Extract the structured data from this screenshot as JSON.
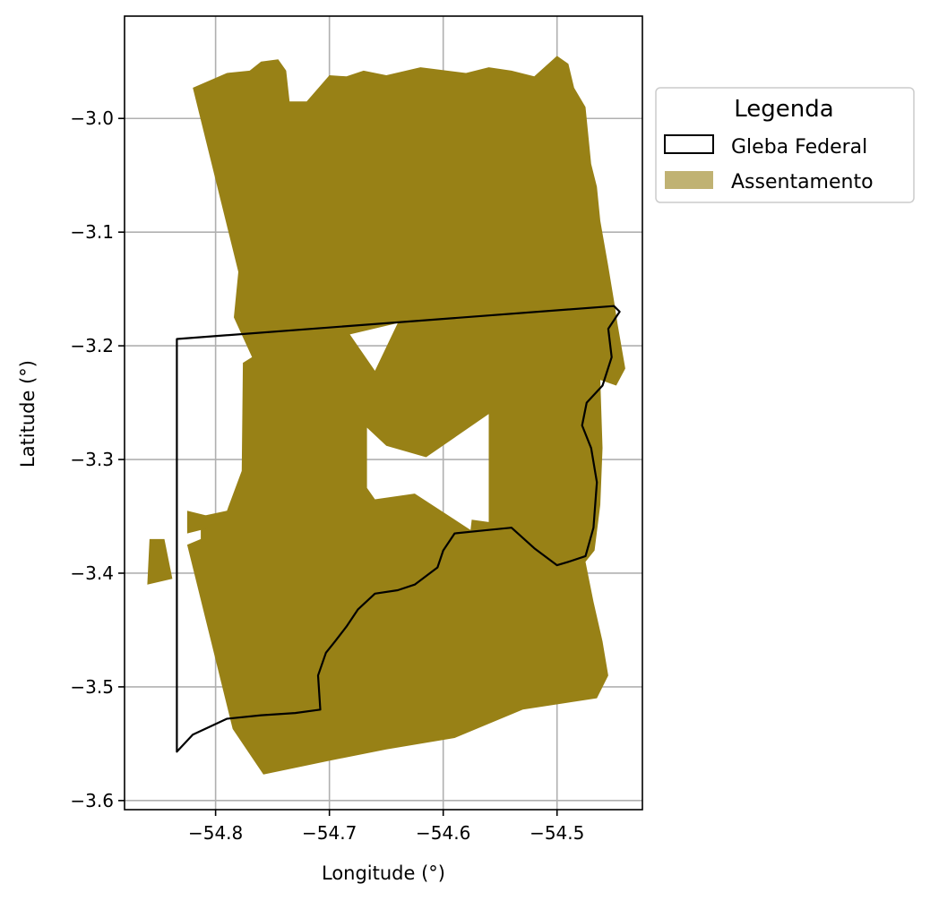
{
  "chart_data": {
    "type": "map",
    "xlabel": "Longitude (°)",
    "ylabel": "Latitude (°)",
    "xlim": [
      -54.88,
      -54.425
    ],
    "ylim": [
      -3.608,
      -2.91
    ],
    "grid": true,
    "x_ticks": [
      -54.8,
      -54.7,
      -54.6,
      -54.5
    ],
    "y_ticks": [
      -3.0,
      -3.1,
      -3.2,
      -3.3,
      -3.4,
      -3.5,
      -3.6
    ],
    "x_tick_labels": [
      "−54.8",
      "−54.7",
      "−54.6",
      "−54.5"
    ],
    "y_tick_labels": [
      "−3.0",
      "−3.1",
      "−3.2",
      "−3.3",
      "−3.4",
      "−3.5",
      "−3.6"
    ],
    "legend": {
      "title": "Legenda",
      "placement": "outside-upper-right",
      "entries": [
        {
          "label": "Gleba Federal",
          "style": "outline",
          "color": "#000000"
        },
        {
          "label": "Assentamento",
          "style": "fill",
          "color": "#c0b273"
        }
      ]
    },
    "layers": {
      "assentamento": {
        "color": "#988116",
        "outer": [
          [
            -54.82,
            -2.973
          ],
          [
            -54.79,
            -2.96
          ],
          [
            -54.77,
            -2.958
          ],
          [
            -54.76,
            -2.95
          ],
          [
            -54.745,
            -2.948
          ],
          [
            -54.738,
            -2.958
          ],
          [
            -54.735,
            -2.985
          ],
          [
            -54.72,
            -2.985
          ],
          [
            -54.7,
            -2.962
          ],
          [
            -54.685,
            -2.963
          ],
          [
            -54.67,
            -2.958
          ],
          [
            -54.65,
            -2.962
          ],
          [
            -54.62,
            -2.955
          ],
          [
            -54.58,
            -2.96
          ],
          [
            -54.56,
            -2.955
          ],
          [
            -54.54,
            -2.958
          ],
          [
            -54.52,
            -2.963
          ],
          [
            -54.5,
            -2.945
          ],
          [
            -54.49,
            -2.952
          ],
          [
            -54.485,
            -2.973
          ],
          [
            -54.475,
            -2.99
          ],
          [
            -54.47,
            -3.04
          ],
          [
            -54.465,
            -3.06
          ],
          [
            -54.462,
            -3.09
          ],
          [
            -54.455,
            -3.13
          ],
          [
            -54.45,
            -3.16
          ],
          [
            -54.447,
            -3.18
          ],
          [
            -54.44,
            -3.22
          ],
          [
            -54.448,
            -3.235
          ],
          [
            -54.462,
            -3.23
          ],
          [
            -54.46,
            -3.29
          ],
          [
            -54.462,
            -3.34
          ],
          [
            -54.467,
            -3.38
          ],
          [
            -54.475,
            -3.39
          ],
          [
            -54.468,
            -3.425
          ],
          [
            -54.46,
            -3.46
          ],
          [
            -54.455,
            -3.49
          ],
          [
            -54.465,
            -3.51
          ],
          [
            -54.53,
            -3.52
          ],
          [
            -54.59,
            -3.545
          ],
          [
            -54.65,
            -3.555
          ],
          [
            -54.7,
            -3.565
          ],
          [
            -54.758,
            -3.577
          ],
          [
            -54.785,
            -3.537
          ],
          [
            -54.825,
            -3.375
          ],
          [
            -54.813,
            -3.37
          ],
          [
            -54.813,
            -3.35
          ],
          [
            -54.79,
            -3.345
          ],
          [
            -54.777,
            -3.31
          ],
          [
            -54.776,
            -3.215
          ],
          [
            -54.768,
            -3.21
          ],
          [
            -54.784,
            -3.175
          ],
          [
            -54.78,
            -3.135
          ]
        ],
        "holes": [
          [
            [
              -54.682,
              -3.19
            ],
            [
              -54.64,
              -3.18
            ],
            [
              -54.66,
              -3.222
            ]
          ],
          [
            [
              -54.667,
              -3.272
            ],
            [
              -54.65,
              -3.288
            ],
            [
              -54.615,
              -3.298
            ],
            [
              -54.56,
              -3.26
            ],
            [
              -54.56,
              -3.29
            ],
            [
              -54.56,
              -3.355
            ],
            [
              -54.575,
              -3.353
            ],
            [
              -54.576,
              -3.362
            ],
            [
              -54.625,
              -3.33
            ],
            [
              -54.66,
              -3.335
            ],
            [
              -54.667,
              -3.325
            ]
          ]
        ],
        "parts": [
          [
            [
              -54.858,
              -3.37
            ],
            [
              -54.86,
              -3.41
            ],
            [
              -54.838,
              -3.405
            ],
            [
              -54.845,
              -3.37
            ]
          ],
          [
            [
              -54.825,
              -3.365
            ],
            [
              -54.805,
              -3.36
            ],
            [
              -54.805,
              -3.35
            ],
            [
              -54.825,
              -3.345
            ]
          ]
        ]
      },
      "gleba_federal": {
        "color": "#000000",
        "polygon": [
          [
            -54.834,
            -3.194
          ],
          [
            -54.45,
            -3.165
          ],
          [
            -54.445,
            -3.17
          ],
          [
            -54.455,
            -3.185
          ],
          [
            -54.452,
            -3.21
          ],
          [
            -54.46,
            -3.235
          ],
          [
            -54.474,
            -3.25
          ],
          [
            -54.478,
            -3.27
          ],
          [
            -54.47,
            -3.29
          ],
          [
            -54.465,
            -3.32
          ],
          [
            -54.468,
            -3.36
          ],
          [
            -54.475,
            -3.385
          ],
          [
            -54.49,
            -3.39
          ],
          [
            -54.5,
            -3.393
          ],
          [
            -54.52,
            -3.378
          ],
          [
            -54.54,
            -3.36
          ],
          [
            -54.56,
            -3.362
          ],
          [
            -54.59,
            -3.365
          ],
          [
            -54.6,
            -3.38
          ],
          [
            -54.605,
            -3.395
          ],
          [
            -54.625,
            -3.41
          ],
          [
            -54.64,
            -3.415
          ],
          [
            -54.66,
            -3.418
          ],
          [
            -54.675,
            -3.432
          ],
          [
            -54.685,
            -3.447
          ],
          [
            -54.695,
            -3.46
          ],
          [
            -54.703,
            -3.47
          ],
          [
            -54.71,
            -3.49
          ],
          [
            -54.708,
            -3.52
          ],
          [
            -54.73,
            -3.523
          ],
          [
            -54.76,
            -3.525
          ],
          [
            -54.79,
            -3.528
          ],
          [
            -54.82,
            -3.542
          ],
          [
            -54.834,
            -3.557
          ]
        ]
      }
    }
  }
}
